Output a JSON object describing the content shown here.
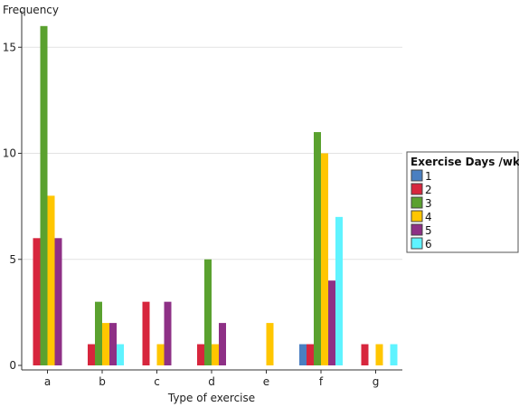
{
  "chart_data": {
    "type": "bar",
    "title": "",
    "xlabel": "Type of exercise",
    "ylabel": "Frequency",
    "categories": [
      "a",
      "b",
      "c",
      "d",
      "e",
      "f",
      "g"
    ],
    "yticks": [
      0,
      5,
      10,
      15
    ],
    "ylim": [
      0,
      16.5
    ],
    "grid": "horizontal",
    "legend": {
      "title": "Exercise Days  /wk",
      "placement": "right"
    },
    "series": [
      {
        "name": "1",
        "color": "#4a7fc1",
        "values": [
          0,
          0,
          0,
          0,
          0,
          1,
          0
        ]
      },
      {
        "name": "2",
        "color": "#d7263d",
        "values": [
          6,
          1,
          3,
          1,
          0,
          1,
          1
        ]
      },
      {
        "name": "3",
        "color": "#5aa12f",
        "values": [
          16,
          3,
          0,
          5,
          0,
          11,
          0
        ]
      },
      {
        "name": "4",
        "color": "#ffc600",
        "values": [
          8,
          2,
          1,
          1,
          2,
          10,
          1
        ]
      },
      {
        "name": "5",
        "color": "#8e3086",
        "values": [
          6,
          2,
          3,
          2,
          0,
          4,
          0
        ]
      },
      {
        "name": "6",
        "color": "#5ff3ff",
        "values": [
          0,
          1,
          0,
          0,
          0,
          7,
          1
        ]
      }
    ]
  }
}
